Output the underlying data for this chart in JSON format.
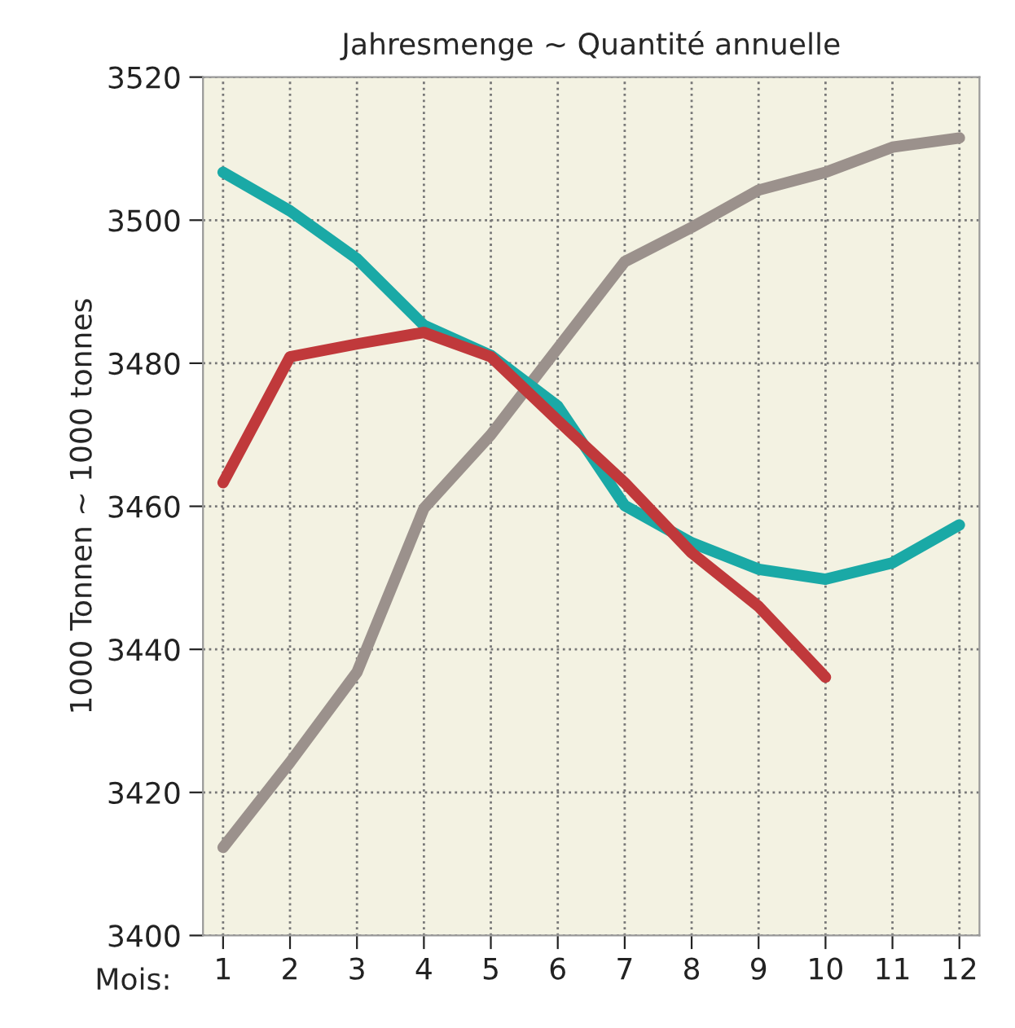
{
  "chart_data": {
    "type": "line",
    "title": "Jahresmenge ~ Quantité annuelle",
    "xlabel": "Mois:",
    "ylabel": "1000 Tonnen ~ 1000 tonnes",
    "categories": [
      "1",
      "2",
      "3",
      "4",
      "5",
      "6",
      "7",
      "8",
      "9",
      "10",
      "11",
      "12"
    ],
    "series": [
      {
        "color": "#9b918c",
        "values": [
          3412.3,
          3424.2,
          3436.8,
          3459.7,
          3470,
          3482.1,
          3494.2,
          3499,
          3504.2,
          3506.7,
          3510.2,
          3511.5
        ]
      },
      {
        "color": "#1aa9a6",
        "values": [
          3506.7,
          3501.3,
          3494.6,
          3485.3,
          3481.1,
          3474,
          3460.1,
          3454.9,
          3451.2,
          3449.8,
          3452.1,
          3457.4
        ]
      },
      {
        "color": "#c0393b",
        "values": [
          3463.3,
          3480.9,
          3482.7,
          3484.3,
          3480.9,
          3472,
          3463.3,
          3453.5,
          3446,
          3436.1,
          null,
          null
        ]
      }
    ],
    "ylim": [
      3400,
      3520
    ],
    "yticks": [
      3400,
      3420,
      3440,
      3460,
      3480,
      3500,
      3520
    ],
    "grid": true,
    "marker": "none",
    "line_style": "solid"
  }
}
